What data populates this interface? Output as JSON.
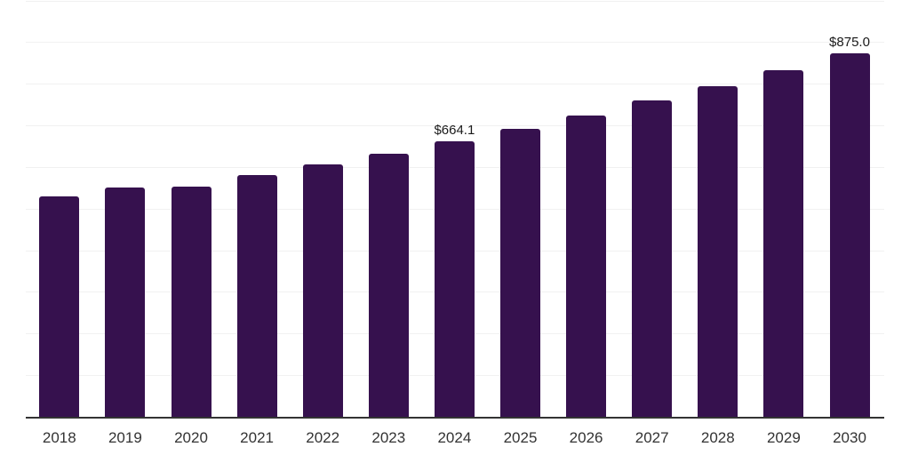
{
  "chart_data": {
    "type": "bar",
    "title": "",
    "xlabel": "",
    "ylabel": "",
    "categories": [
      "2018",
      "2019",
      "2020",
      "2021",
      "2022",
      "2023",
      "2024",
      "2025",
      "2026",
      "2027",
      "2028",
      "2029",
      "2030"
    ],
    "values": [
      530.5,
      553.3,
      555.5,
      582.3,
      607.8,
      634.9,
      664.1,
      693.5,
      726.0,
      762.0,
      795.7,
      834.5,
      875.0
    ],
    "bar_labels": [
      "",
      "",
      "",
      "",
      "",
      "",
      "$664.1",
      "",
      "",
      "",
      "",
      "",
      "$875.0"
    ],
    "currency_prefix": "$",
    "ylim": [
      0,
      1000
    ],
    "gridline_step": 100,
    "grid": true,
    "legend_position": "none",
    "colors": {
      "bar": "#36114e",
      "axis_line": "#333333",
      "gridline": "#f1f1f1",
      "tick_label": "#333333",
      "value_label": "#1a1a1a",
      "background": "#ffffff"
    }
  }
}
